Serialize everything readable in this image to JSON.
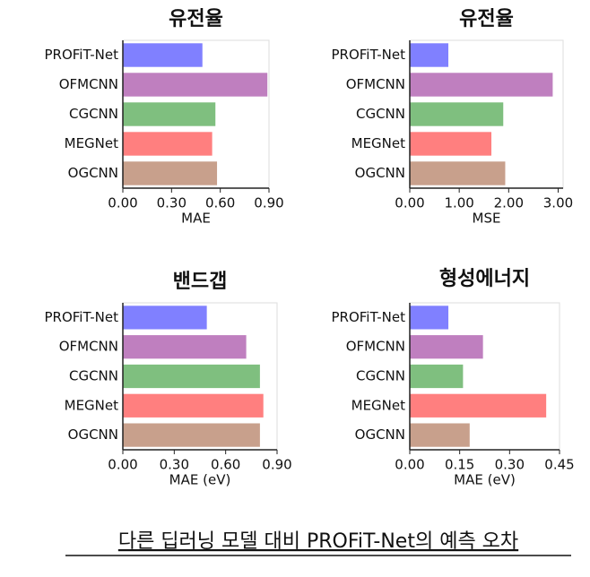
{
  "chart_data": [
    {
      "type": "bar",
      "orientation": "horizontal",
      "title": "유전율",
      "x_label": "MAE",
      "categories": [
        "PROFiT-Net",
        "OFMCNN",
        "CGCNN",
        "MEGNet",
        "OGCNN"
      ],
      "values": [
        0.49,
        0.89,
        0.57,
        0.55,
        0.58
      ],
      "colors": [
        "#8080ff",
        "#bf7fbf",
        "#7fbf7f",
        "#ff7f7f",
        "#c8a08c"
      ],
      "xlim": [
        0,
        0.9
      ],
      "xticks": [
        {
          "value": 0,
          "label": "0.00"
        },
        {
          "value": 0.3,
          "label": "0.30"
        },
        {
          "value": 0.6,
          "label": "0.60"
        },
        {
          "value": 0.9,
          "label": "0.90"
        }
      ]
    },
    {
      "type": "bar",
      "orientation": "horizontal",
      "title": "유전율",
      "x_label": "MSE",
      "categories": [
        "PROFiT-Net",
        "OFMCNN",
        "CGCNN",
        "MEGNet",
        "OGCNN"
      ],
      "values": [
        0.78,
        2.89,
        1.89,
        1.65,
        1.93
      ],
      "colors": [
        "#8080ff",
        "#bf7fbf",
        "#7fbf7f",
        "#ff7f7f",
        "#c8a08c"
      ],
      "xlim": [
        0,
        3.1
      ],
      "xticks": [
        {
          "value": 0,
          "label": "0.00"
        },
        {
          "value": 1,
          "label": "1.00"
        },
        {
          "value": 2,
          "label": "2.00"
        },
        {
          "value": 3,
          "label": "3.00"
        }
      ]
    },
    {
      "type": "bar",
      "orientation": "horizontal",
      "title": "밴드갭",
      "x_label": "MAE (eV)",
      "categories": [
        "PROFiT-Net",
        "OFMCNN",
        "CGCNN",
        "MEGNet",
        "OGCNN"
      ],
      "values": [
        0.49,
        0.72,
        0.8,
        0.82,
        0.8
      ],
      "colors": [
        "#8080ff",
        "#bf7fbf",
        "#7fbf7f",
        "#ff7f7f",
        "#c8a08c"
      ],
      "xlim": [
        0,
        0.9
      ],
      "xticks": [
        {
          "value": 0,
          "label": "0.00"
        },
        {
          "value": 0.3,
          "label": "0.30"
        },
        {
          "value": 0.6,
          "label": "0.60"
        },
        {
          "value": 0.9,
          "label": "0.90"
        }
      ]
    },
    {
      "type": "bar",
      "orientation": "horizontal",
      "title": "형성에너지",
      "x_label": "MAE (eV)",
      "categories": [
        "PROFiT-Net",
        "OFMCNN",
        "CGCNN",
        "MEGNet",
        "OGCNN"
      ],
      "values": [
        0.116,
        0.22,
        0.16,
        0.41,
        0.18
      ],
      "colors": [
        "#8080ff",
        "#bf7fbf",
        "#7fbf7f",
        "#ff7f7f",
        "#c8a08c"
      ],
      "xlim": [
        0,
        0.45
      ],
      "xticks": [
        {
          "value": 0,
          "label": "0.00"
        },
        {
          "value": 0.15,
          "label": "0.15"
        },
        {
          "value": 0.3,
          "label": "0.30"
        },
        {
          "value": 0.45,
          "label": "0.45"
        }
      ]
    }
  ],
  "caption": "다른 딥러닝 모델 대비 PROFiT-Net의 예측 오차"
}
